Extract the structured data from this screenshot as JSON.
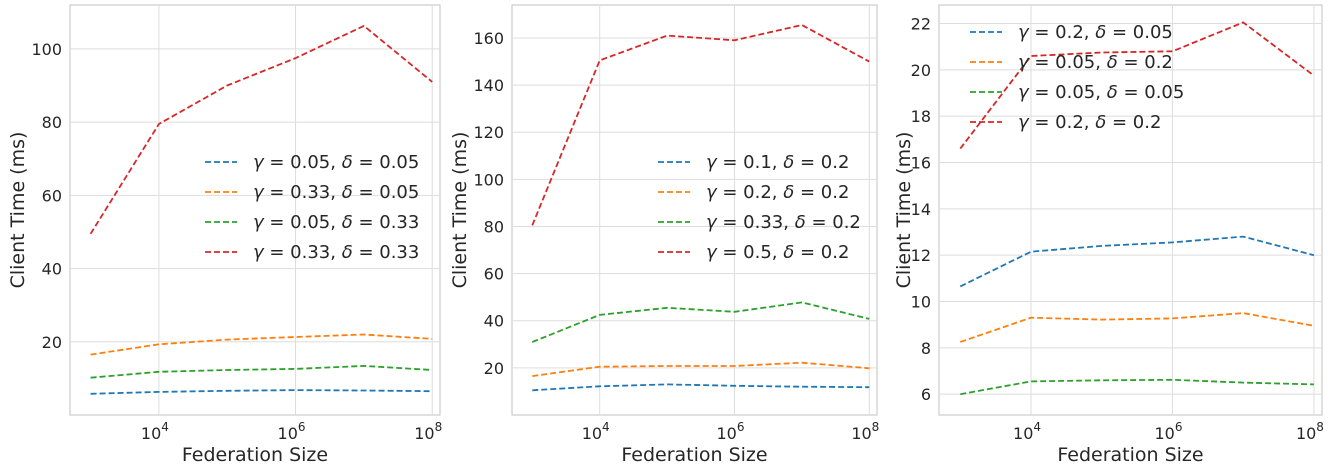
{
  "colors": {
    "blue": "#1f77b4",
    "orange": "#ff7f0e",
    "green": "#2ca02c",
    "red": "#d62728",
    "grid": "#dddddd",
    "frame": "#cccccc",
    "text": "#262626"
  },
  "chart_data": [
    {
      "type": "line",
      "xscale": "log",
      "x": [
        1000,
        10000,
        100000,
        1000000,
        10000000,
        100000000
      ],
      "xlim": [
        500,
        130000000
      ],
      "ylim": [
        0,
        112
      ],
      "yticks": [
        20,
        40,
        60,
        80,
        100
      ],
      "xticks": [
        10000,
        1000000,
        100000000
      ],
      "xticklabels": [
        {
          "base": "10",
          "exp": "4"
        },
        {
          "base": "10",
          "exp": "6"
        },
        {
          "base": "10",
          "exp": "8"
        }
      ],
      "xlabel": "Federation Size",
      "ylabel": "Client Time (ms)",
      "grid": true,
      "legend": "center-right",
      "series": [
        {
          "gamma": "0.05",
          "delta": "0.05",
          "color": "#1f77b4",
          "values": [
            5.8,
            6.3,
            6.6,
            6.8,
            6.7,
            6.5
          ]
        },
        {
          "gamma": "0.33",
          "delta": "0.05",
          "color": "#ff7f0e",
          "values": [
            16.5,
            19.3,
            20.6,
            21.3,
            22.0,
            20.8
          ]
        },
        {
          "gamma": "0.05",
          "delta": "0.33",
          "color": "#2ca02c",
          "values": [
            10.2,
            11.8,
            12.3,
            12.6,
            13.4,
            12.3
          ]
        },
        {
          "gamma": "0.33",
          "delta": "0.33",
          "color": "#d62728",
          "values": [
            49.5,
            79.5,
            90.0,
            97.5,
            106.3,
            91.0
          ]
        }
      ]
    },
    {
      "type": "line",
      "xscale": "log",
      "x": [
        1000,
        10000,
        100000,
        1000000,
        10000000,
        100000000
      ],
      "xlim": [
        500,
        130000000
      ],
      "ylim": [
        0,
        174
      ],
      "yticks": [
        20,
        40,
        60,
        80,
        100,
        120,
        140,
        160
      ],
      "xticks": [
        10000,
        1000000,
        100000000
      ],
      "xticklabels": [
        {
          "base": "10",
          "exp": "4"
        },
        {
          "base": "10",
          "exp": "6"
        },
        {
          "base": "10",
          "exp": "8"
        }
      ],
      "xlabel": "Federation Size",
      "ylabel": "Client Time (ms)",
      "grid": true,
      "legend": "center-right",
      "series": [
        {
          "gamma": "0.1",
          "delta": "0.2",
          "color": "#1f77b4",
          "values": [
            10.5,
            12.2,
            13.0,
            12.4,
            12.0,
            11.8
          ]
        },
        {
          "gamma": "0.2",
          "delta": "0.2",
          "color": "#ff7f0e",
          "values": [
            16.5,
            20.5,
            20.8,
            20.8,
            22.2,
            19.8
          ]
        },
        {
          "gamma": "0.33",
          "delta": "0.2",
          "color": "#2ca02c",
          "values": [
            31.0,
            42.5,
            45.5,
            43.8,
            47.8,
            40.8
          ]
        },
        {
          "gamma": "0.5",
          "delta": "0.2",
          "color": "#d62728",
          "values": [
            80.5,
            150.5,
            161.0,
            159.0,
            165.5,
            150.0
          ]
        }
      ]
    },
    {
      "type": "line",
      "xscale": "log",
      "x": [
        1000,
        10000,
        100000,
        1000000,
        10000000,
        100000000
      ],
      "xlim": [
        500,
        130000000
      ],
      "ylim": [
        5.1,
        22.8
      ],
      "yticks": [
        6,
        8,
        10,
        12,
        14,
        16,
        18,
        20,
        22
      ],
      "xticks": [
        10000,
        1000000,
        100000000
      ],
      "xticklabels": [
        {
          "base": "10",
          "exp": "4"
        },
        {
          "base": "10",
          "exp": "6"
        },
        {
          "base": "10",
          "exp": "8"
        }
      ],
      "xlabel": "Federation Size",
      "ylabel": "Client Time (ms)",
      "grid": true,
      "legend": "top-left",
      "series": [
        {
          "gamma": "0.2",
          "delta": "0.05",
          "color": "#1f77b4",
          "values": [
            10.65,
            12.15,
            12.4,
            12.55,
            12.8,
            12.0
          ]
        },
        {
          "gamma": "0.05",
          "delta": "0.2",
          "color": "#ff7f0e",
          "values": [
            8.25,
            9.3,
            9.22,
            9.27,
            9.5,
            8.95
          ]
        },
        {
          "gamma": "0.05",
          "delta": "0.05",
          "color": "#2ca02c",
          "values": [
            6.0,
            6.55,
            6.6,
            6.62,
            6.5,
            6.42
          ]
        },
        {
          "gamma": "0.2",
          "delta": "0.2",
          "color": "#d62728",
          "values": [
            16.6,
            20.6,
            20.75,
            20.8,
            22.05,
            19.75
          ]
        }
      ]
    }
  ]
}
